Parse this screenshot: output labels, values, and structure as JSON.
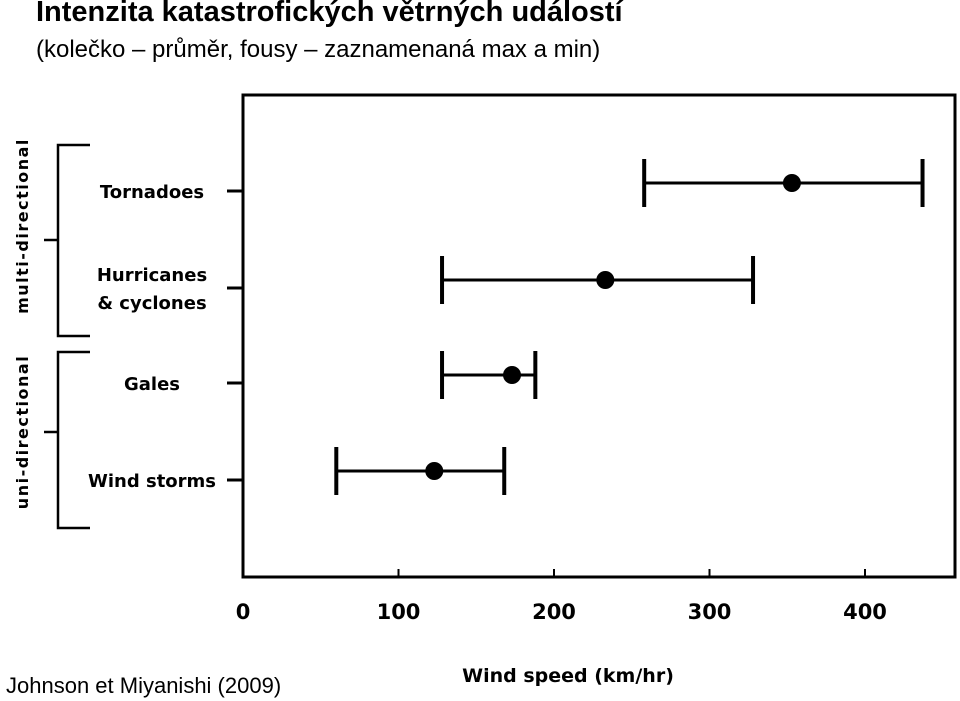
{
  "header": {
    "title": "Intenzita katastrofických větrných událostí",
    "subtitle": "(kolečko – průměr, fousy – zaznamenaná max a min)"
  },
  "footer": {
    "citation": "Johnson et Miyanishi (2009)"
  },
  "chart_data": {
    "type": "errorbar",
    "categories": [
      "Tornadoes",
      "Hurricanes & cyclones",
      "Gales",
      "Wind storms"
    ],
    "category_lines": [
      [
        "Tornadoes"
      ],
      [
        "Hurricanes",
        "& cyclones"
      ],
      [
        "Gales"
      ],
      [
        "Wind  storms"
      ]
    ],
    "mean": [
      353,
      233,
      173,
      123
    ],
    "min": [
      258,
      128,
      128,
      60
    ],
    "max": [
      437,
      328,
      188,
      168
    ],
    "xlabel": "Wind speed (km/hr)",
    "xlim": [
      0,
      455
    ],
    "xticks": [
      0,
      100,
      200,
      300,
      400
    ],
    "groups": [
      {
        "label": "multi-directional",
        "categories": [
          "Tornadoes",
          "Hurricanes & cyclones"
        ]
      },
      {
        "label": "uni-directional",
        "categories": [
          "Gales",
          "Wind storms"
        ]
      }
    ],
    "grid": false,
    "legend": "none"
  }
}
